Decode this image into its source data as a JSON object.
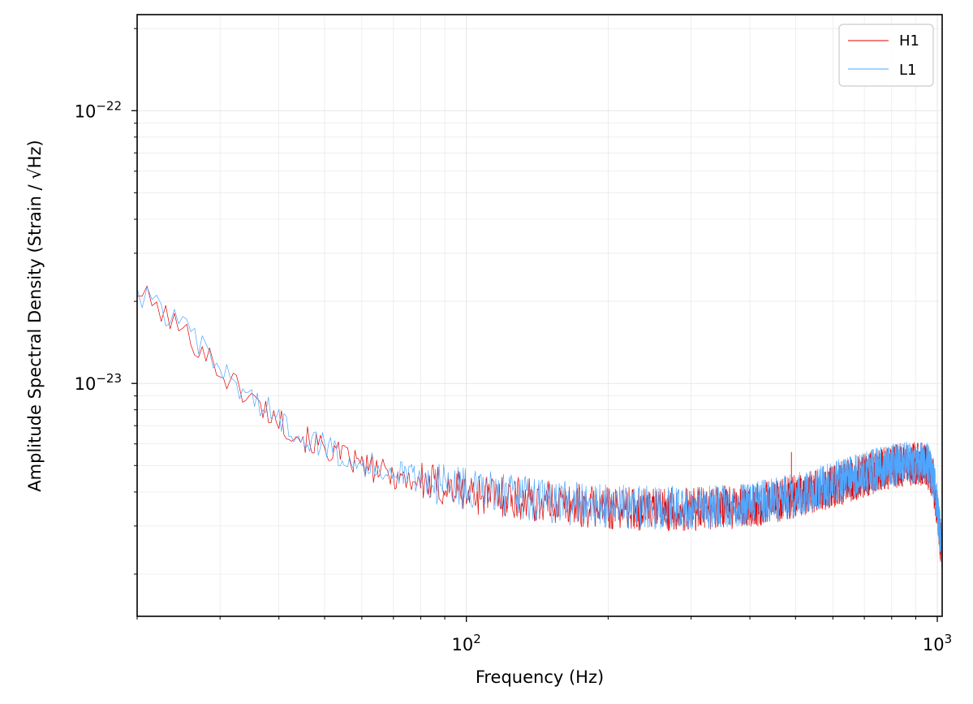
{
  "chart_data": {
    "type": "line",
    "xlabel": "Frequency (Hz)",
    "ylabel": "Amplitude Spectral Density (Strain / √Hz)",
    "xscale": "log",
    "yscale": "log",
    "xlim": [
      20,
      1024
    ],
    "ylim": [
      1.4e-24,
      2.25e-22
    ],
    "grid": true,
    "legend_position": "top-right",
    "x_ticks": [
      {
        "value": 100,
        "base": "10",
        "exp": "2"
      },
      {
        "value": 1000,
        "base": "10",
        "exp": "3"
      }
    ],
    "y_ticks": [
      {
        "value": 1e-23,
        "base": "10",
        "exp": "−23"
      },
      {
        "value": 1e-22,
        "base": "10",
        "exp": "−22"
      }
    ],
    "series": [
      {
        "name": "H1",
        "color": "#e00000",
        "x": [
          20,
          22,
          25,
          28,
          30,
          35,
          40,
          45,
          50,
          60,
          70,
          80,
          90,
          100,
          120,
          150,
          200,
          250,
          300,
          400,
          500,
          600,
          700,
          800,
          900,
          950,
          980,
          1000,
          1024
        ],
        "y": [
          2.2e-23,
          1.9e-23,
          1.55e-23,
          1.3e-23,
          1.1e-23,
          8.8e-24,
          7.3e-24,
          6.3e-24,
          5.8e-24,
          5e-24,
          4.6e-24,
          4.35e-24,
          4.15e-24,
          4e-24,
          3.85e-24,
          3.65e-24,
          3.5e-24,
          3.45e-24,
          3.45e-24,
          3.55e-24,
          3.85e-24,
          4.2e-24,
          4.6e-24,
          4.95e-24,
          5.1e-24,
          5e-24,
          4.4e-24,
          3.4e-24,
          2.35e-24
        ]
      },
      {
        "name": "L1",
        "color": "#4da6ff",
        "x": [
          20,
          22,
          25,
          28,
          30,
          35,
          40,
          45,
          50,
          60,
          70,
          80,
          90,
          100,
          120,
          150,
          200,
          250,
          300,
          400,
          500,
          600,
          700,
          800,
          900,
          950,
          980,
          1000,
          1024
        ],
        "y": [
          2.15e-23,
          1.95e-23,
          1.6e-23,
          1.3e-23,
          1.12e-23,
          8.9e-24,
          7.4e-24,
          6.4e-24,
          5.9e-24,
          5.1e-24,
          4.7e-24,
          4.45e-24,
          4.25e-24,
          4.1e-24,
          3.9e-24,
          3.7e-24,
          3.55e-24,
          3.5e-24,
          3.5e-24,
          3.6e-24,
          3.9e-24,
          4.3e-24,
          4.7e-24,
          5e-24,
          5.2e-24,
          5.1e-24,
          4.5e-24,
          3.5e-24,
          2.4e-24
        ]
      }
    ],
    "annotations": [
      {
        "series": "H1",
        "x": 490,
        "y": 5.6e-24,
        "kind": "spectral line"
      }
    ]
  }
}
